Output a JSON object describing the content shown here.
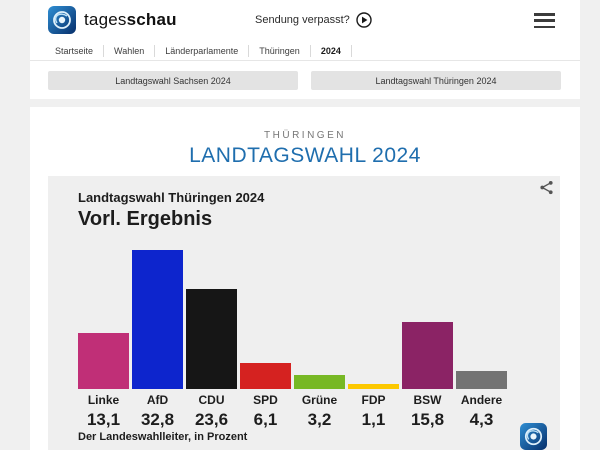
{
  "header": {
    "brand_regular": "tages",
    "brand_bold": "schau",
    "sendung_verpasst": "Sendung verpasst?",
    "breadcrumb": [
      "Startseite",
      "Wahlen",
      "Länderparlamente",
      "Thüringen",
      "2024"
    ]
  },
  "nav_buttons": [
    {
      "label": "Landtagswahl Sachsen 2024"
    },
    {
      "label": "Landtagswahl Thüringen 2024"
    }
  ],
  "page": {
    "kicker": "THÜRINGEN",
    "title": "LANDTAGSWAHL 2024",
    "title_color": "#1f6eae"
  },
  "icons": {
    "logo": "tagesschau-globe-logo",
    "play": "play-circle-icon",
    "menu": "hamburger-menu-icon",
    "share": "share-icon"
  },
  "chart_data": {
    "type": "bar",
    "title": "Landtagswahl Thüringen 2024",
    "subtitle": "Vorl. Ergebnis",
    "source": "Der Landeswahlleiter, in Prozent",
    "categories": [
      "Linke",
      "AfD",
      "CDU",
      "SPD",
      "Grüne",
      "FDP",
      "BSW",
      "Andere"
    ],
    "values": [
      13.1,
      32.8,
      23.6,
      6.1,
      3.2,
      1.1,
      15.8,
      4.3
    ],
    "value_labels": [
      "13,1",
      "32,8",
      "23,6",
      "6,1",
      "3,2",
      "1,1",
      "15,8",
      "4,3"
    ],
    "colors": [
      "#c02f77",
      "#0d25cd",
      "#161616",
      "#d52220",
      "#77b824",
      "#fcc800",
      "#8b2365",
      "#737373"
    ],
    "ylim": [
      0,
      33
    ],
    "xlabel": "",
    "ylabel": "",
    "grid": false,
    "legend": "none"
  }
}
